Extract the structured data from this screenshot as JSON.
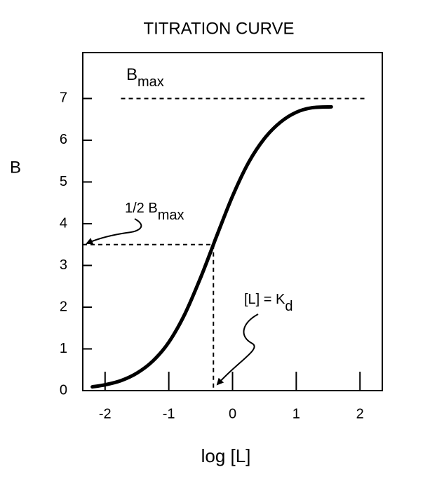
{
  "chart_data": {
    "type": "line",
    "title": "TITRATION CURVE",
    "y_label": "B",
    "x_label": "log [L]",
    "x": [
      -2.2,
      -2.0,
      -1.75,
      -1.5,
      -1.25,
      -1.0,
      -0.75,
      -0.5,
      -0.3,
      -0.25,
      0,
      0.25,
      0.5,
      0.75,
      1.0,
      1.25,
      1.55
    ],
    "values": [
      0.09,
      0.14,
      0.24,
      0.42,
      0.71,
      1.16,
      1.83,
      2.71,
      3.5,
      3.7,
      4.66,
      5.46,
      6.04,
      6.43,
      6.67,
      6.78,
      6.8
    ],
    "color": "#000000",
    "xlim": [
      -2.35,
      2.35
    ],
    "xticks": [
      -2,
      -1,
      0,
      1,
      2
    ],
    "ylim": [
      0,
      8.1
    ],
    "yticks": [
      0,
      1,
      2,
      3,
      4,
      5,
      6,
      7
    ],
    "bmax_line": {
      "y": 7,
      "x": [
        -1.75,
        2.1
      ]
    },
    "half_line": {
      "y": 3.5
    },
    "kd": -0.3,
    "annotations": {
      "bmax": {
        "main": "B",
        "sub": "max"
      },
      "half_bmax": {
        "main": "1/2 B",
        "sub": "max"
      },
      "kd": {
        "main": "[L] = K",
        "sub": "d"
      }
    }
  }
}
